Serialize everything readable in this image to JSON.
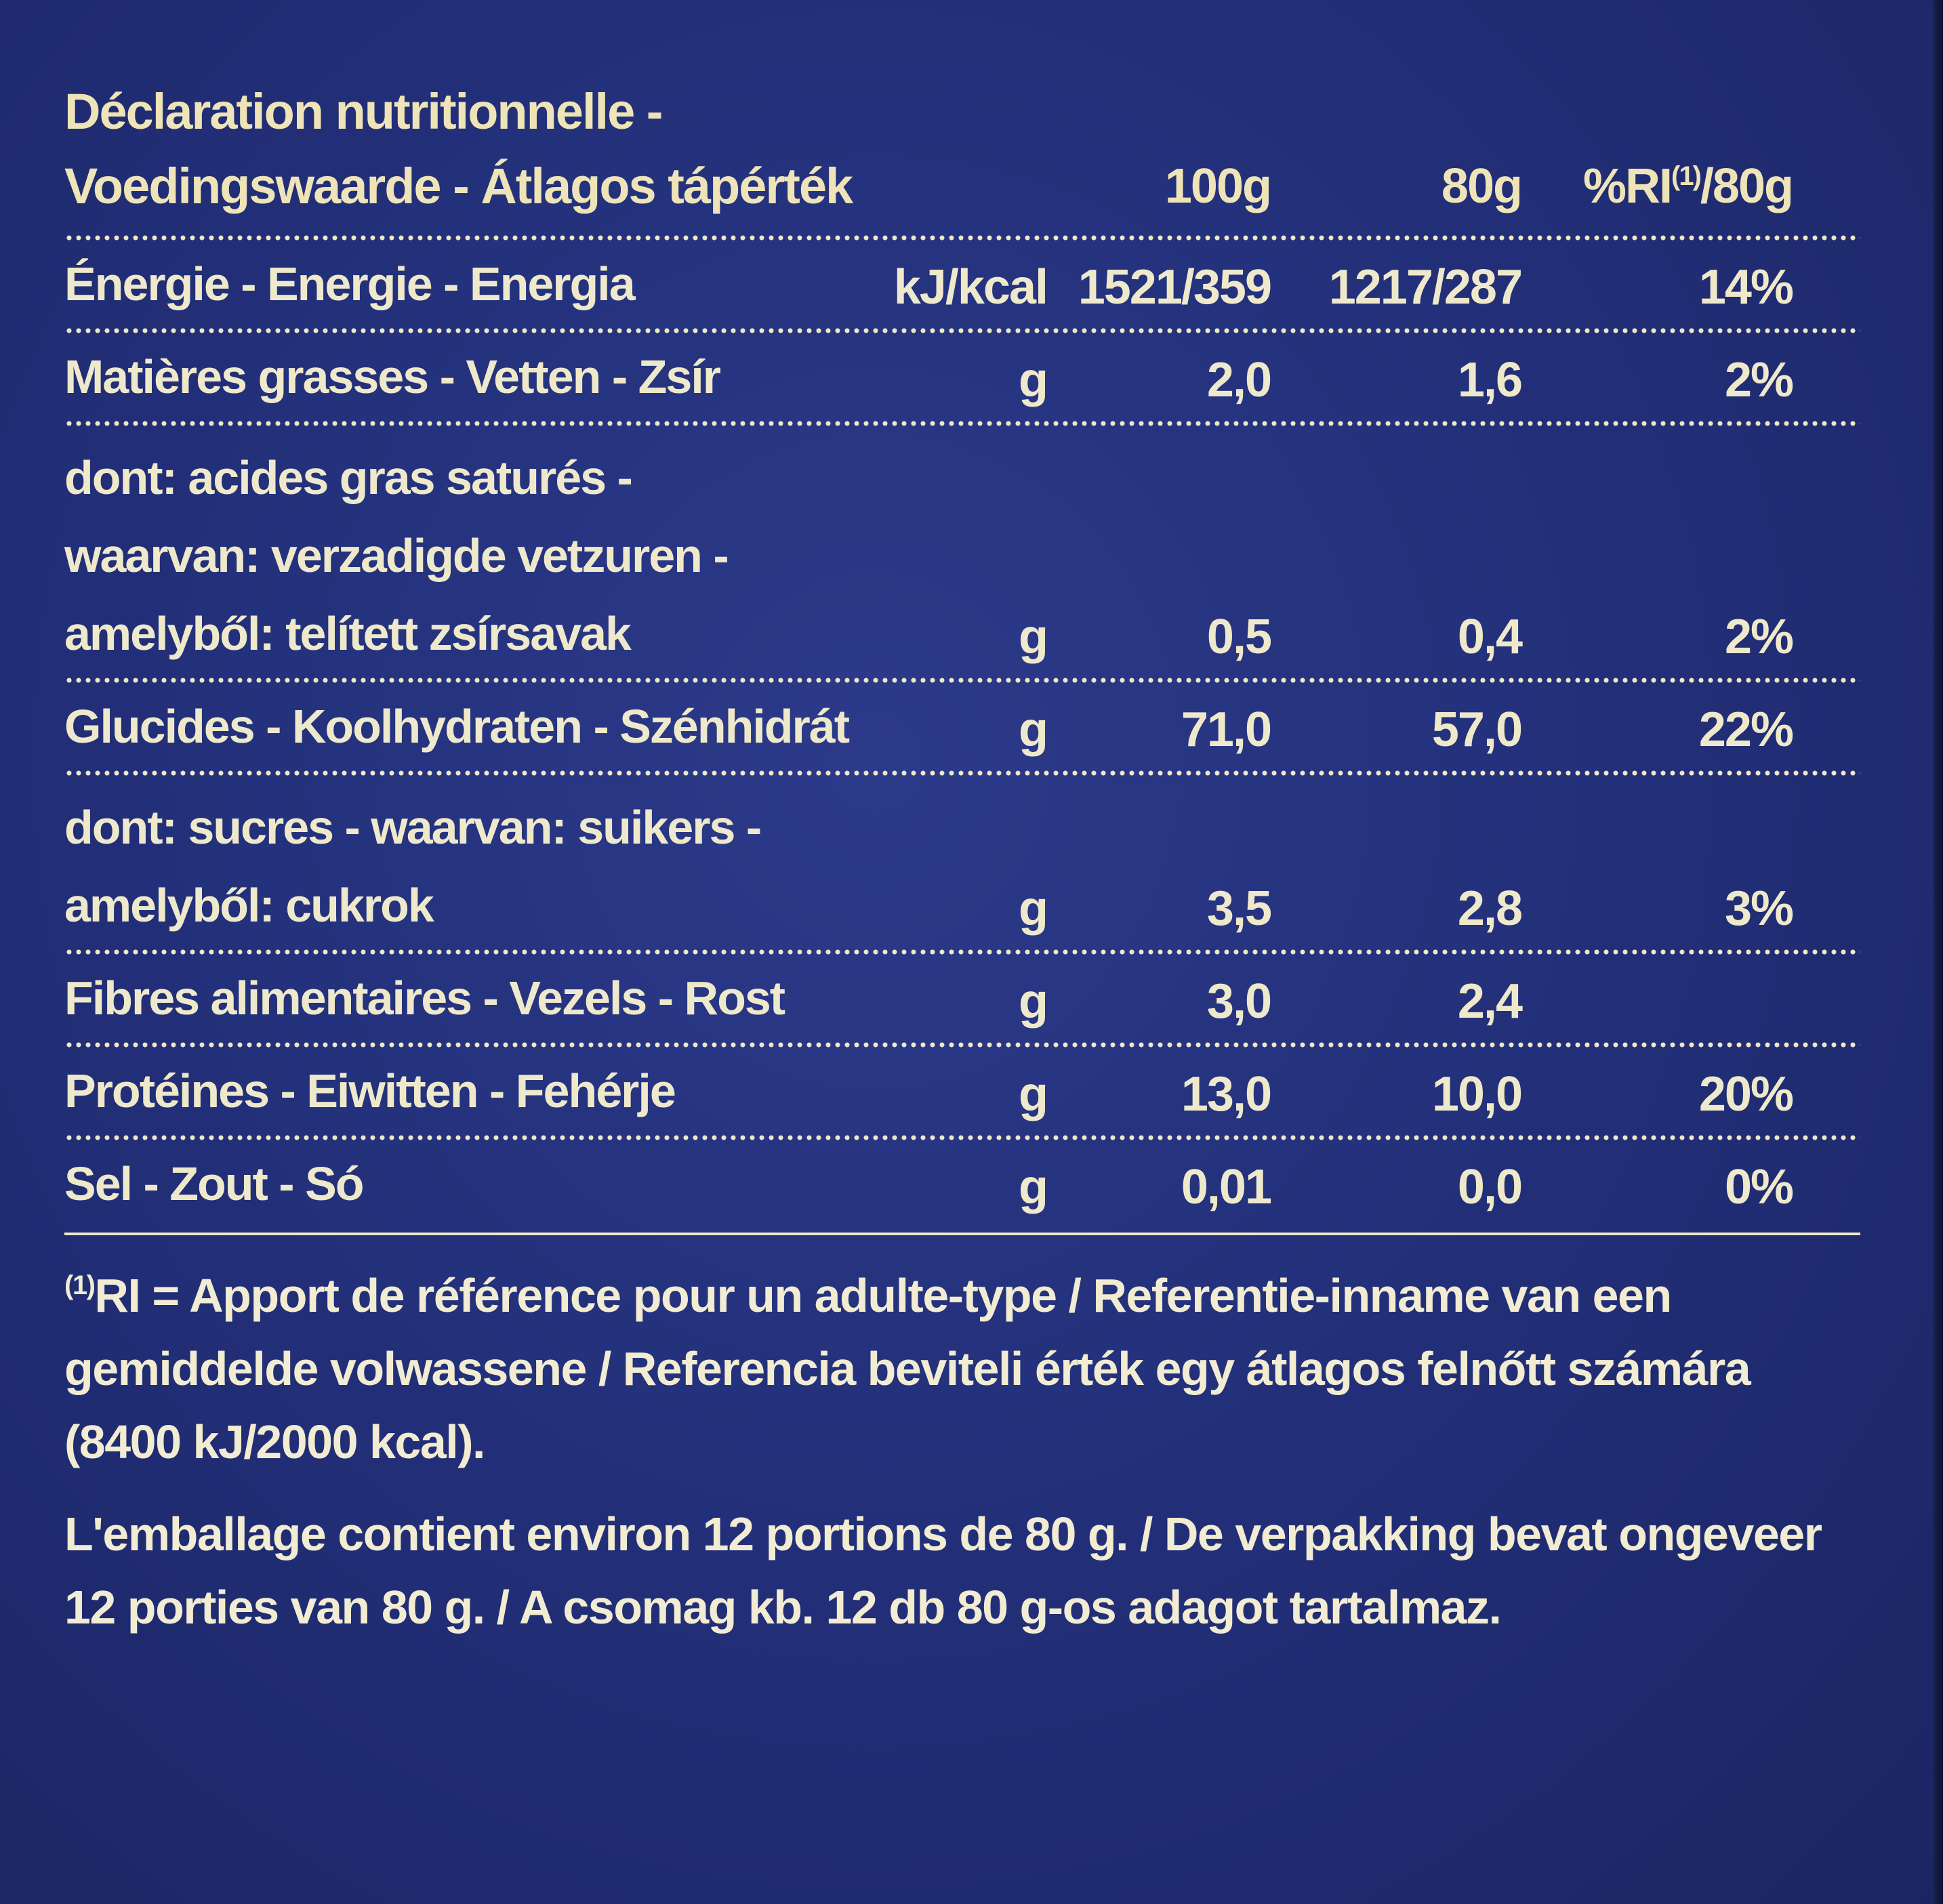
{
  "header": {
    "title_line1": "Déclaration nutritionnelle -",
    "title_line2": "Voedingswaarde - Átlagos tápérték",
    "col_100g": "100g",
    "col_80g": "80g",
    "col_ri_prefix": "%RI",
    "col_ri_sup": "(1)",
    "col_ri_suffix": "/80g"
  },
  "rows": [
    {
      "lines": [
        "Énergie - Energie - Energia"
      ],
      "unit": "kJ/kcal",
      "per100": "1521/359",
      "per80": "1217/287",
      "ri": "14%"
    },
    {
      "lines": [
        "Matières grasses - Vetten - Zsír"
      ],
      "unit": "g",
      "per100": "2,0",
      "per80": "1,6",
      "ri": "2%"
    },
    {
      "lines": [
        "dont: acides gras saturés -",
        "waarvan: verzadigde vetzuren -",
        "amelyből: telített zsírsavak"
      ],
      "unit": "g",
      "per100": "0,5",
      "per80": "0,4",
      "ri": "2%"
    },
    {
      "lines": [
        "Glucides - Koolhydraten - Szénhidrát"
      ],
      "unit": "g",
      "per100": "71,0",
      "per80": "57,0",
      "ri": "22%"
    },
    {
      "lines": [
        "dont: sucres - waarvan: suikers -",
        "amelyből: cukrok"
      ],
      "unit": "g",
      "per100": "3,5",
      "per80": "2,8",
      "ri": "3%"
    },
    {
      "lines": [
        "Fibres alimentaires - Vezels - Rost"
      ],
      "unit": "g",
      "per100": "3,0",
      "per80": "2,4",
      "ri": ""
    },
    {
      "lines": [
        "Protéines - Eiwitten - Fehérje"
      ],
      "unit": "g",
      "per100": "13,0",
      "per80": "10,0",
      "ri": "20%"
    },
    {
      "lines": [
        "Sel - Zout - Só"
      ],
      "unit": "g",
      "per100": "0,01",
      "per80": "0,0",
      "ri": "0%"
    }
  ],
  "footnote": {
    "sup": "(1)",
    "text": "RI = Apport de référence pour un adulte-type / Referentie-inname van een gemiddelde volwassene / Referencia beviteli érték egy átlagos felnőtt számára (8400 kJ/2000 kcal).",
    "portions": "L'emballage contient environ 12 portions de 80 g. / De verpakking bevat ongeveer 12 porties van 80 g. / A csomag kb. 12 db 80 g-os adagot tartalmaz."
  },
  "colors": {
    "background": "#23307a",
    "text": "#efe9cc"
  }
}
